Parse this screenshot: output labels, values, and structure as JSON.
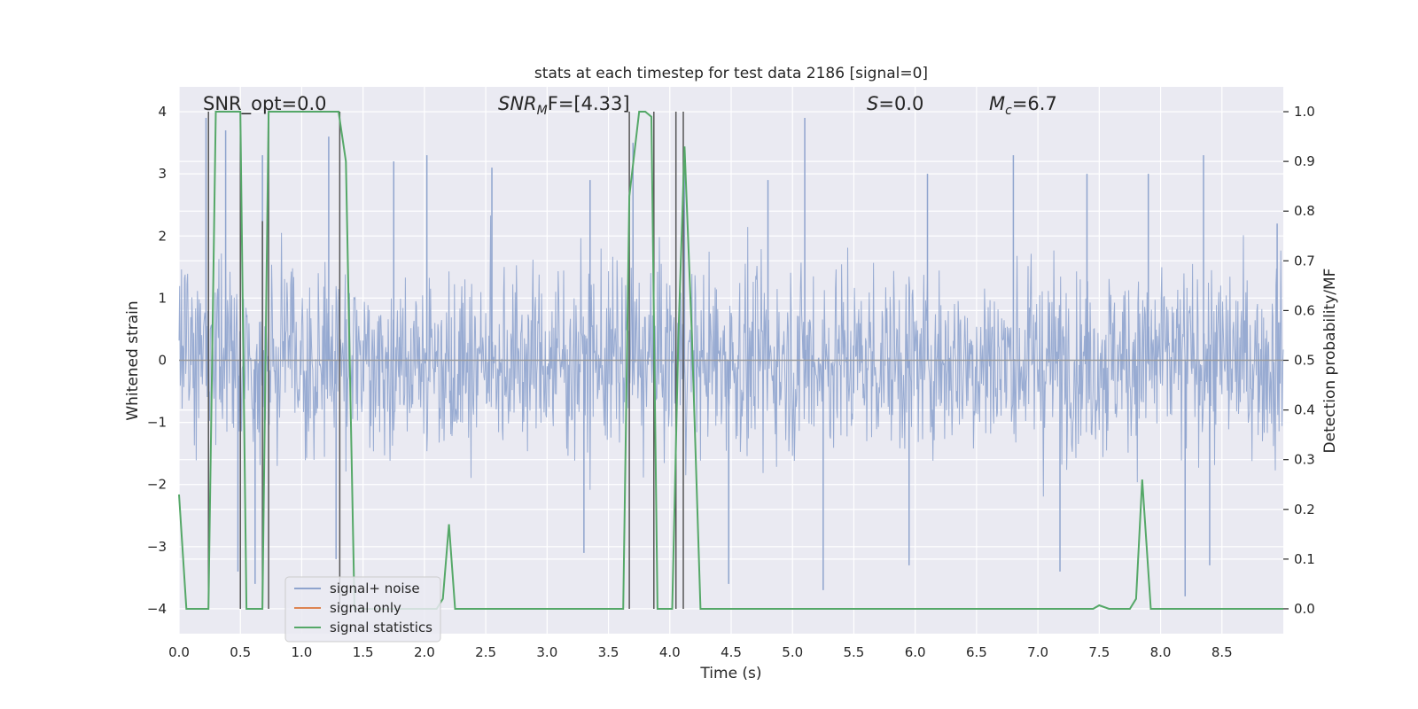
{
  "chart_data": {
    "type": "line",
    "title": "stats at each timestep for test data 2186 [signal=0]",
    "xlabel": "Time (s)",
    "ylabel_left": "Whitened strain",
    "ylabel_right": "Detection probability/MF",
    "xlim": [
      0,
      9.0
    ],
    "ylim_left": [
      -4.4,
      4.4
    ],
    "ylim_right": [
      -0.05,
      1.05
    ],
    "xticks": [
      0.0,
      0.5,
      1.0,
      1.5,
      2.0,
      2.5,
      3.0,
      3.5,
      4.0,
      4.5,
      5.0,
      5.5,
      6.0,
      6.5,
      7.0,
      7.5,
      8.0,
      8.5
    ],
    "xtick_labels": [
      "0.0",
      "0.5",
      "1.0",
      "1.5",
      "2.0",
      "2.5",
      "3.0",
      "3.5",
      "4.0",
      "4.5",
      "5.0",
      "5.5",
      "6.0",
      "6.5",
      "7.0",
      "7.5",
      "8.0",
      "8.5"
    ],
    "yticks_left": [
      4,
      3,
      2,
      1,
      0,
      -1,
      -2,
      -3,
      -4
    ],
    "ytick_labels_left": [
      "4",
      "3",
      "2",
      "1",
      "0",
      "−1",
      "−2",
      "−3",
      "−4"
    ],
    "yticks_right": [
      1.0,
      0.9,
      0.8,
      0.7,
      0.6,
      0.5,
      0.4,
      0.3,
      0.2,
      0.1,
      0.0
    ],
    "ytick_labels_right": [
      "1.0",
      "0.9",
      "0.8",
      "0.7",
      "0.6",
      "0.5",
      "0.4",
      "0.3",
      "0.2",
      "0.1",
      "0.0"
    ],
    "grid": true,
    "legend_placement": "lower-left",
    "annotations": {
      "snr_opt": "SNR_opt=0.0",
      "snr_mf_prefix": "SNR",
      "snr_mf_sub": "M",
      "snr_mf_suffix": "F=[4.33]",
      "s_symbol": "S",
      "s_value": "=0.0",
      "mc_symbol": "M",
      "mc_sub": "c",
      "mc_value": "=6.7"
    },
    "series": [
      {
        "name": "signal+ noise",
        "color": "#8fa4ce",
        "axis": "left",
        "description_of_values": "noise-like whitened strain, approx +/-2.5 with spikes to +/-4",
        "spikes": [
          [
            0.22,
            3.9
          ],
          [
            0.38,
            3.7
          ],
          [
            0.68,
            3.3
          ],
          [
            1.22,
            3.6
          ],
          [
            1.75,
            3.2
          ],
          [
            2.02,
            3.3
          ],
          [
            2.55,
            3.1
          ],
          [
            3.35,
            2.9
          ],
          [
            3.7,
            3.5
          ],
          [
            4.12,
            3.3
          ],
          [
            4.8,
            2.9
          ],
          [
            5.1,
            3.9
          ],
          [
            6.1,
            3.0
          ],
          [
            6.8,
            3.3
          ],
          [
            7.4,
            3.0
          ],
          [
            7.9,
            3.0
          ],
          [
            8.35,
            3.3
          ],
          [
            8.95,
            2.2
          ],
          [
            0.48,
            -3.4
          ],
          [
            0.62,
            -3.6
          ],
          [
            1.28,
            -3.2
          ],
          [
            3.3,
            -3.1
          ],
          [
            4.48,
            -3.6
          ],
          [
            5.25,
            -3.7
          ],
          [
            5.95,
            -3.3
          ],
          [
            7.18,
            -3.4
          ],
          [
            8.2,
            -3.8
          ],
          [
            8.4,
            -3.3
          ]
        ]
      },
      {
        "name": "signal only",
        "color": "#dd8452",
        "axis": "left",
        "values_constant": 0.0
      },
      {
        "name": "signal statistics",
        "color": "#55a868",
        "axis": "right",
        "x": [
          0.0,
          0.06,
          0.24,
          0.3,
          0.5,
          0.55,
          0.62,
          0.68,
          0.73,
          1.3,
          1.36,
          1.43,
          1.5,
          2.1,
          2.15,
          2.2,
          2.25,
          2.3,
          3.62,
          3.67,
          3.75,
          3.8,
          3.85,
          3.9,
          3.95,
          4.02,
          4.07,
          4.12,
          4.18,
          4.25,
          4.3,
          7.4,
          7.45,
          7.5,
          7.58,
          7.75,
          7.8,
          7.85,
          7.92,
          9.0
        ],
        "values": [
          0.23,
          0.0,
          0.0,
          1.0,
          1.0,
          0.0,
          0.0,
          0.0,
          1.0,
          1.0,
          0.9,
          0.0,
          0.0,
          0.0,
          0.02,
          0.17,
          0.0,
          0.0,
          0.0,
          0.83,
          1.0,
          1.0,
          0.99,
          0.0,
          0.0,
          0.0,
          0.55,
          0.93,
          0.55,
          0.0,
          0.0,
          0.0,
          0.0,
          0.007,
          0.0,
          0.0,
          0.02,
          0.26,
          0.0,
          0.0
        ]
      }
    ],
    "vertical_markers": {
      "color": "#555555",
      "segments": [
        [
          0.24,
          0.0,
          1.0
        ],
        [
          0.5,
          0.0,
          1.0
        ],
        [
          0.68,
          0.0,
          0.78
        ],
        [
          0.73,
          0.0,
          1.0
        ],
        [
          1.31,
          0.0,
          1.0
        ],
        [
          3.67,
          0.0,
          1.0
        ],
        [
          3.87,
          0.0,
          1.0
        ],
        [
          4.05,
          0.0,
          1.0
        ],
        [
          4.11,
          0.0,
          1.0
        ]
      ]
    }
  },
  "legend": {
    "items": [
      {
        "label": "signal+ noise",
        "color": "#8fa4ce"
      },
      {
        "label": "signal only",
        "color": "#dd8452"
      },
      {
        "label": "signal statistics",
        "color": "#55a868"
      }
    ]
  }
}
